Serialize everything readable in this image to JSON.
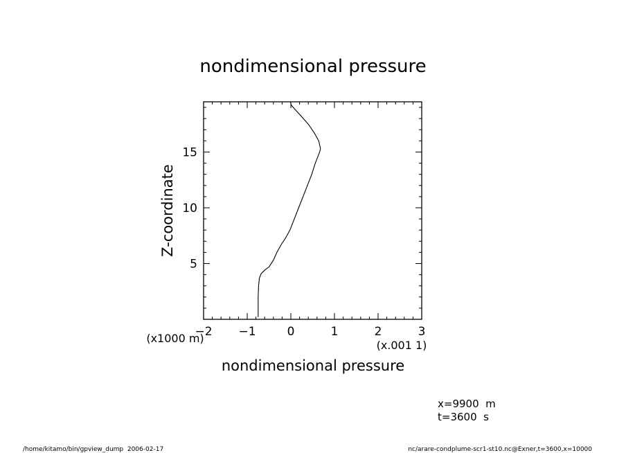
{
  "chart_data": {
    "type": "line",
    "title": "nondimensional pressure",
    "xlabel": "nondimensional pressure",
    "ylabel": "Z-coordinate",
    "x_scale_label": "(x.001 1)",
    "y_scale_label": "(x1000 m)",
    "xlim": [
      -2,
      3
    ],
    "ylim": [
      0,
      19.5
    ],
    "x_ticks": [
      -2,
      -1,
      0,
      1,
      2,
      3
    ],
    "x_tick_labels": [
      "−2",
      "−1",
      "0",
      "1",
      "2",
      "3"
    ],
    "y_ticks": [
      5,
      10,
      15
    ],
    "y_tick_labels": [
      "5",
      "10",
      "15"
    ],
    "x_minor_step": 0.2,
    "y_minor_step": 1,
    "grid": false,
    "series": [
      {
        "x": [
          -0.75,
          -0.75,
          -0.75,
          -0.74,
          -0.72,
          -0.68,
          -0.6,
          -0.5,
          -0.4,
          -0.32,
          -0.22,
          -0.12,
          -0.02,
          0.08,
          0.18,
          0.28,
          0.38,
          0.48,
          0.56,
          0.62,
          0.66,
          0.68,
          0.64,
          0.54,
          0.4,
          0.24,
          0.1,
          0.01,
          -0.01
        ],
        "y": [
          0.2,
          1.0,
          2.0,
          3.0,
          3.7,
          4.1,
          4.4,
          4.7,
          5.3,
          6.0,
          6.7,
          7.3,
          8.0,
          9.0,
          10.0,
          11.0,
          12.0,
          13.0,
          14.0,
          14.6,
          15.0,
          15.3,
          16.0,
          16.7,
          17.5,
          18.2,
          18.8,
          19.2,
          19.5
        ]
      }
    ]
  },
  "info": {
    "x_position": "x=9900  m",
    "time": "t=3600  s"
  },
  "footer": {
    "left": "/home/kitamo/bin/gpview_dump  2006-02-17",
    "right": "nc/arare-condplume-scr1-st10.nc@Exner,t=3600,x=10000"
  }
}
